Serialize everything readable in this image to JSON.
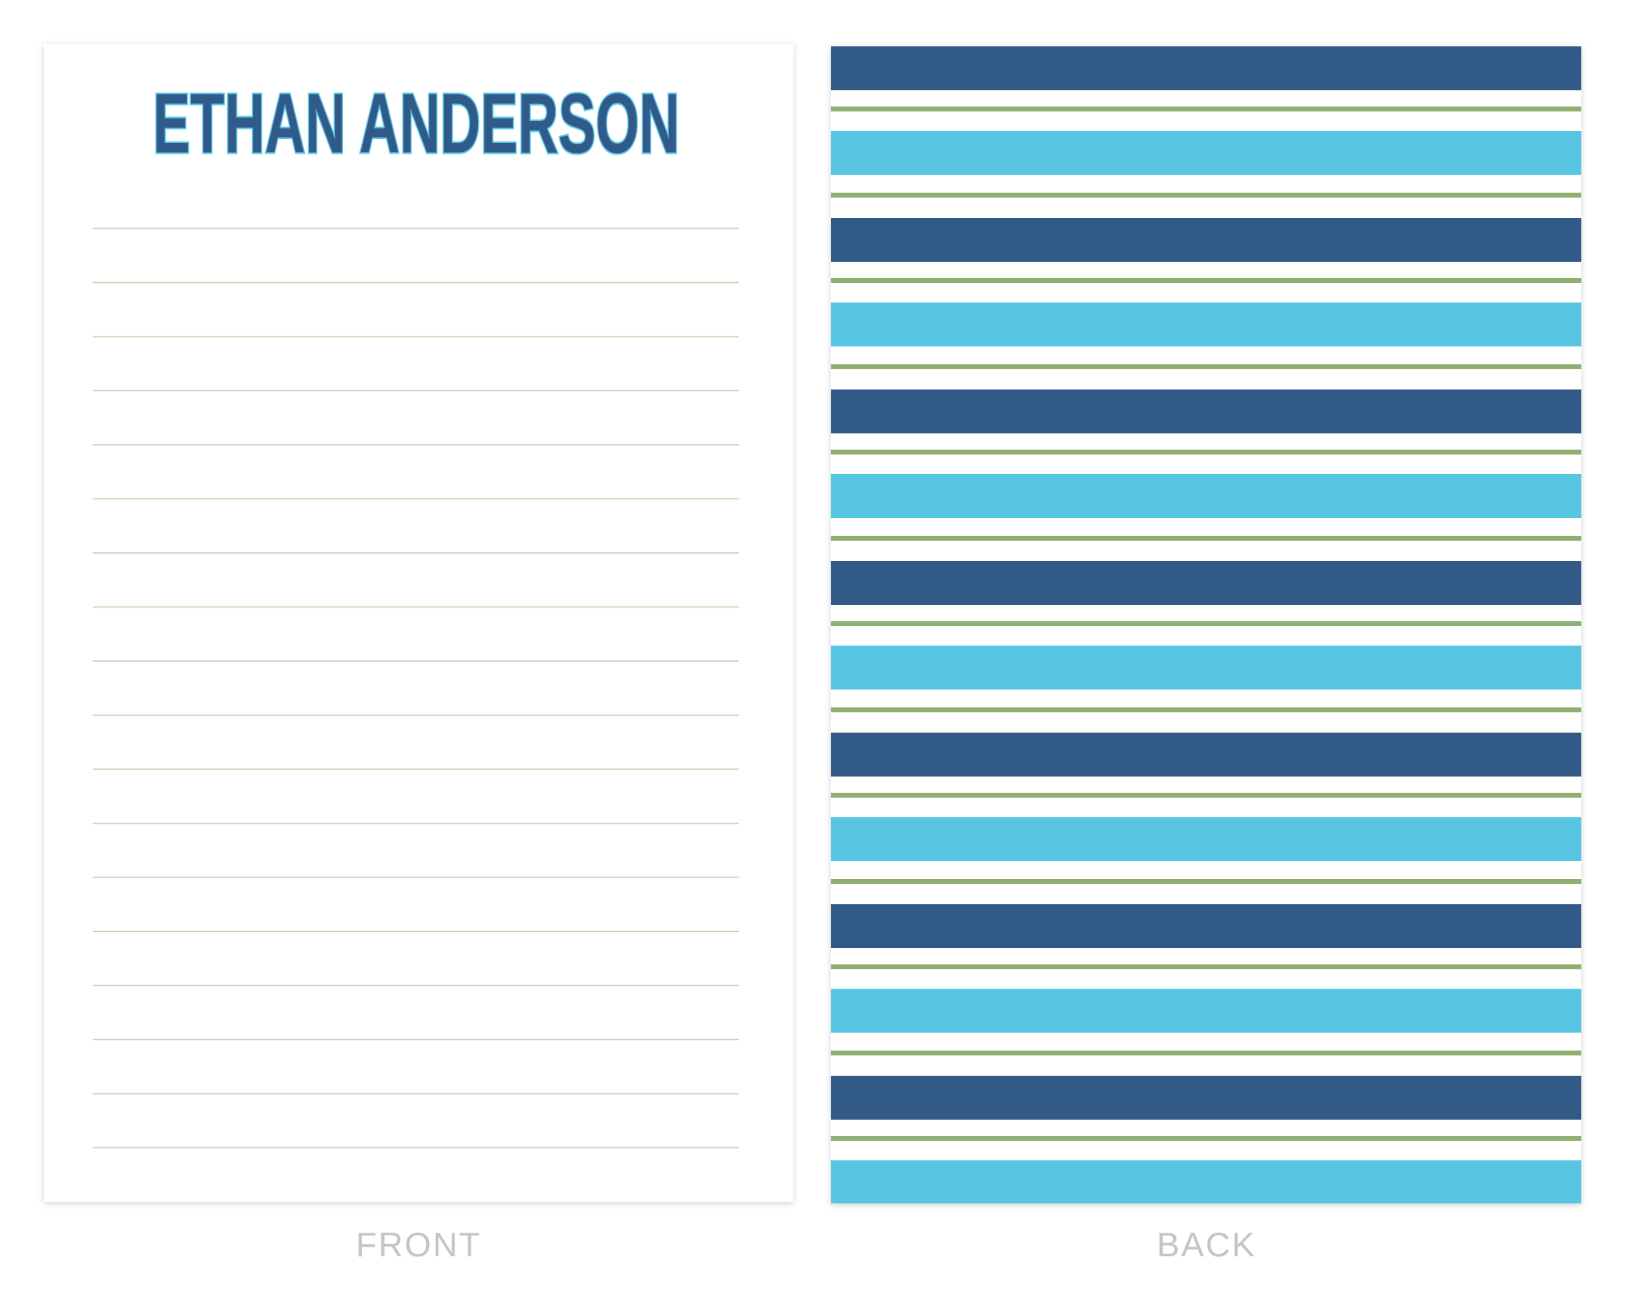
{
  "front": {
    "name": "ETHAN ANDERSON",
    "caption": "FRONT"
  },
  "back": {
    "caption": "BACK"
  }
}
